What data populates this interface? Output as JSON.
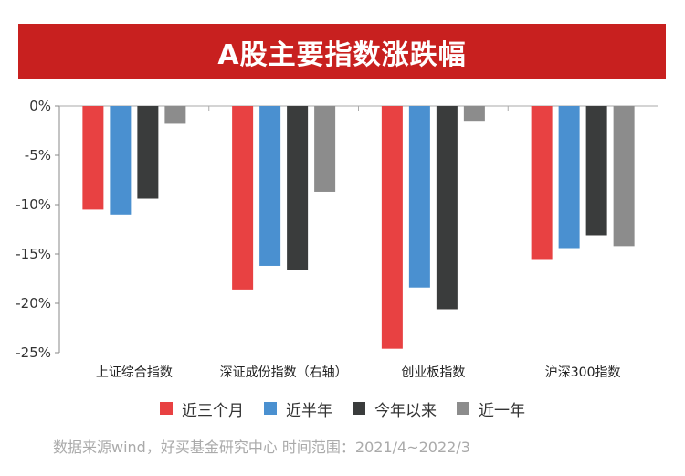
{
  "title": "A股主要指数涨跌幅",
  "source_note": "数据来源wind，好买基金研究中心  时间范围：2021/4~2022/3",
  "chart_data": {
    "type": "bar",
    "categories": [
      "上证综合指数",
      "深证成份指数（右轴）",
      "创业板指数",
      "沪深300指数"
    ],
    "series": [
      {
        "name": "近三个月",
        "color": "#e84142",
        "values": [
          -10.5,
          -18.6,
          -24.6,
          -15.6
        ]
      },
      {
        "name": "近半年",
        "color": "#4a90d0",
        "values": [
          -11.0,
          -16.2,
          -18.4,
          -14.4
        ]
      },
      {
        "name": "今年以来",
        "color": "#3a3c3c",
        "values": [
          -9.4,
          -16.6,
          -20.6,
          -13.1
        ]
      },
      {
        "name": "近一年",
        "color": "#8c8c8c",
        "values": [
          -1.8,
          -8.7,
          -1.5,
          -14.2
        ]
      }
    ],
    "ylim": [
      -25,
      0
    ],
    "yticks": [
      0,
      -5,
      -10,
      -15,
      -20,
      -25
    ],
    "ytick_labels": [
      "0%",
      "-5%",
      "-10%",
      "-15%",
      "-20%",
      "-25%"
    ],
    "grid": false,
    "legend_position": "bottom"
  }
}
